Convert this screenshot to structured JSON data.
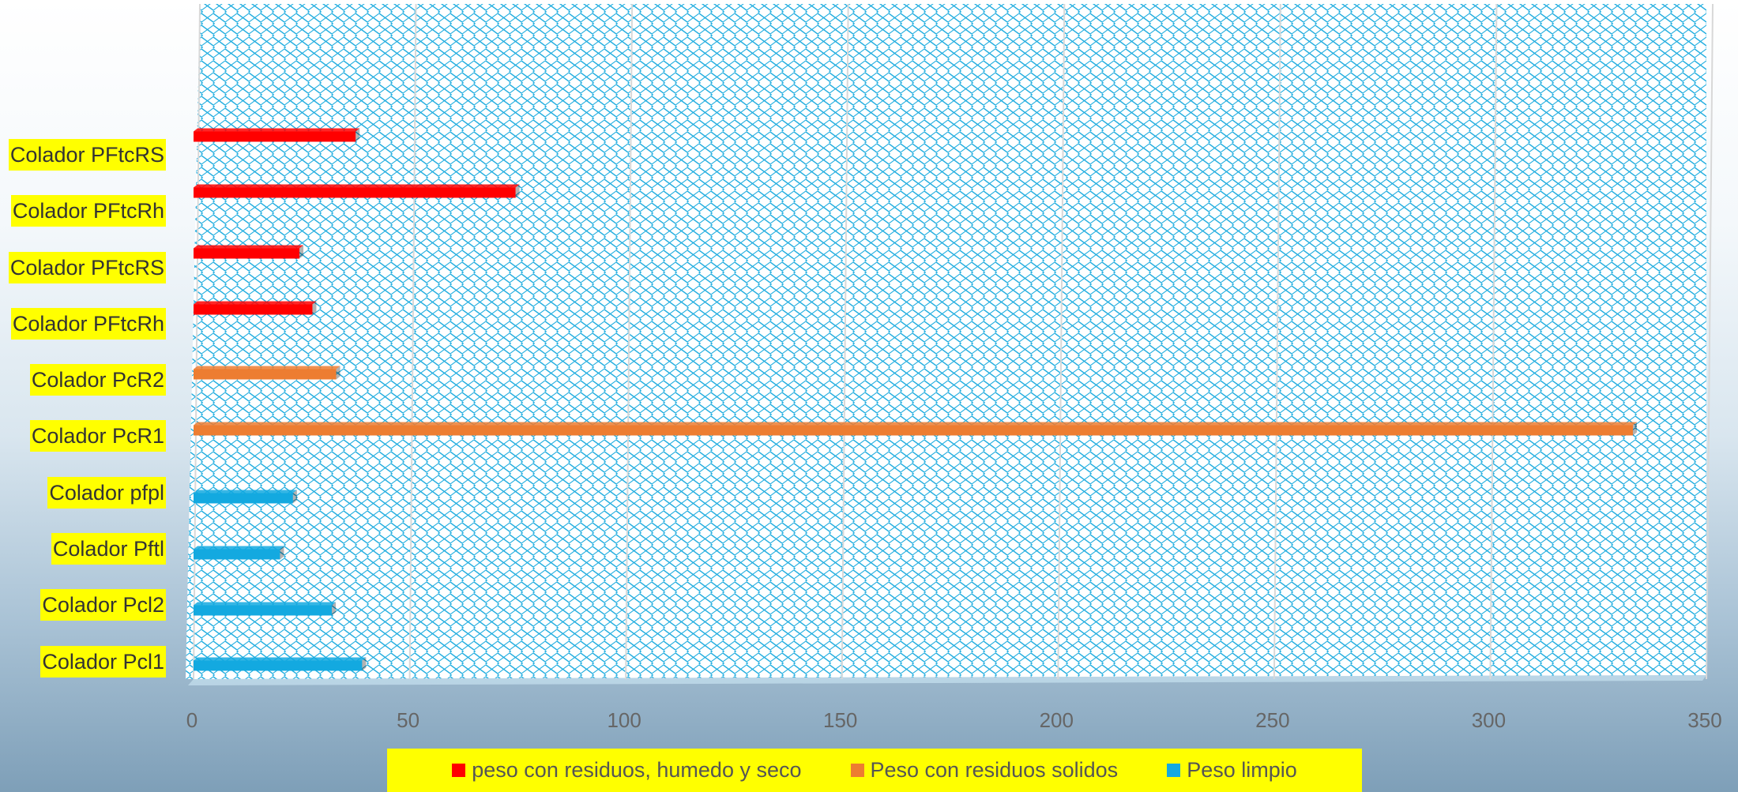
{
  "chart_data": {
    "type": "bar",
    "orientation": "horizontal",
    "categories": [
      "Colador Pcl1",
      "Colador Pcl2",
      "Colador Pftl",
      "Colador pfpl",
      "Colador PcR1",
      "Colador PcR2",
      "Colador PFtcRh",
      "Colador PFtcRS",
      "Colador PFtcRh",
      "Colador PFtcRS"
    ],
    "series": [
      {
        "name": "peso con residuos, humedo y seco",
        "color": "#ff0000",
        "values": [
          null,
          null,
          null,
          null,
          null,
          null,
          27.5,
          24.5,
          74.5,
          37.5
        ]
      },
      {
        "name": "Peso con residuos solidos",
        "color": "#ed7d31",
        "values": [
          null,
          null,
          null,
          null,
          333,
          33,
          null,
          null,
          null,
          null
        ]
      },
      {
        "name": "Peso limpio",
        "color": "#13a9e0",
        "values": [
          39,
          32,
          20,
          23,
          null,
          null,
          null,
          null,
          null,
          null
        ]
      }
    ],
    "xlim": [
      0,
      350
    ],
    "xticks": [
      0,
      50,
      100,
      150,
      200,
      250,
      300,
      350
    ],
    "grid": true,
    "legend_position": "bottom"
  },
  "legend": {
    "items": [
      {
        "label": "peso con residuos, humedo y seco",
        "color": "#ff0000"
      },
      {
        "label": "Peso con residuos solidos",
        "color": "#ed7d31"
      },
      {
        "label": "Peso limpio",
        "color": "#13a9e0"
      }
    ]
  }
}
